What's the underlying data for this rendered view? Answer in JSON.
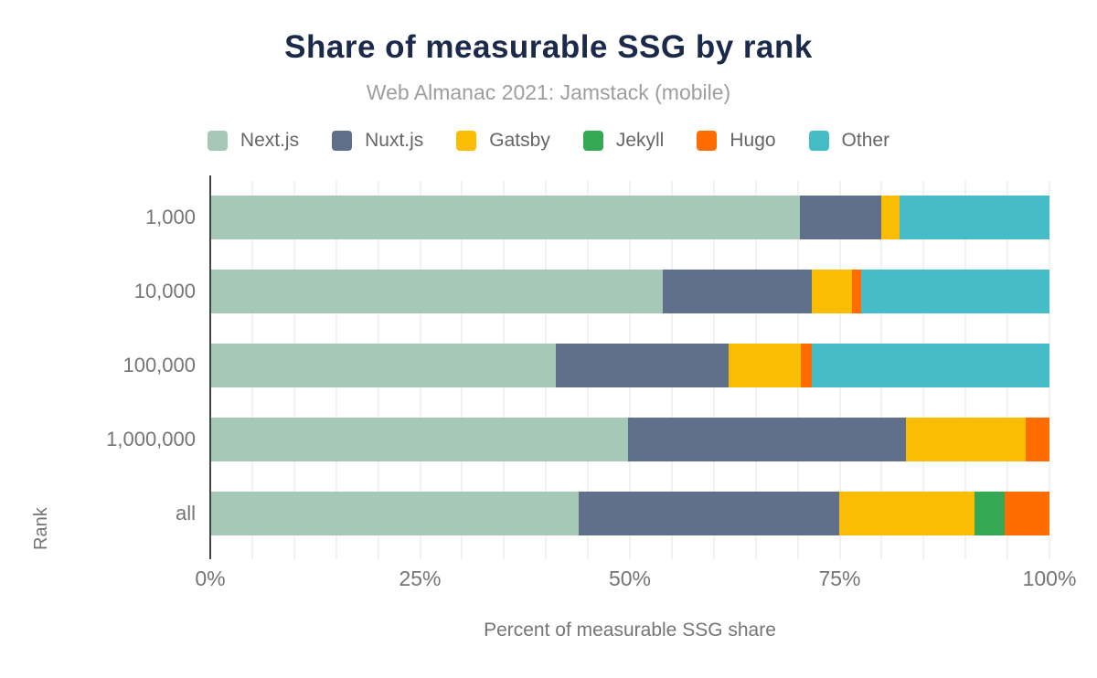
{
  "chart_data": {
    "type": "bar",
    "orientation": "horizontal",
    "stacked": true,
    "title": "Share of measurable SSG by rank",
    "subtitle": "Web Almanac 2021: Jamstack (mobile)",
    "xlabel": "Percent of measurable SSG share",
    "ylabel": "Rank",
    "xlim": [
      0,
      100
    ],
    "x_ticks": [
      {
        "value": 0,
        "label": "0%"
      },
      {
        "value": 25,
        "label": "25%"
      },
      {
        "value": 50,
        "label": "50%"
      },
      {
        "value": 75,
        "label": "75%"
      },
      {
        "value": 100,
        "label": "100%"
      }
    ],
    "grid": {
      "vertical_minor_step_percent": 5,
      "color": "#f1f1f1",
      "horizontal": false
    },
    "legend_position": "top",
    "categories": [
      "1,000",
      "10,000",
      "100,000",
      "1,000,000",
      "all"
    ],
    "series": [
      {
        "name": "Next.js",
        "color": "#a6c9b7",
        "values": [
          70.3,
          53.9,
          41.2,
          49.8,
          43.9
        ]
      },
      {
        "name": "Nuxt.js",
        "color": "#60708b",
        "values": [
          9.7,
          17.8,
          20.6,
          33.1,
          31.1
        ]
      },
      {
        "name": "Gatsby",
        "color": "#fbbc04",
        "values": [
          2.1,
          4.8,
          8.6,
          14.3,
          16.1
        ]
      },
      {
        "name": "Jekyll",
        "color": "#34a853",
        "values": [
          0,
          0,
          0,
          0,
          3.6
        ]
      },
      {
        "name": "Hugo",
        "color": "#ff6d01",
        "values": [
          0,
          1.1,
          1.3,
          2.8,
          5.3
        ]
      },
      {
        "name": "Other",
        "color": "#46bdc6",
        "values": [
          17.9,
          22.4,
          28.3,
          0,
          0
        ]
      }
    ]
  },
  "styles": {
    "title_color": "#1b2a4a",
    "subtitle_color": "#9e9e9e",
    "axis_text_color": "#757575",
    "axis_line_color": "#424242",
    "gridline_color": "#f1f1f1",
    "background": "#ffffff"
  }
}
